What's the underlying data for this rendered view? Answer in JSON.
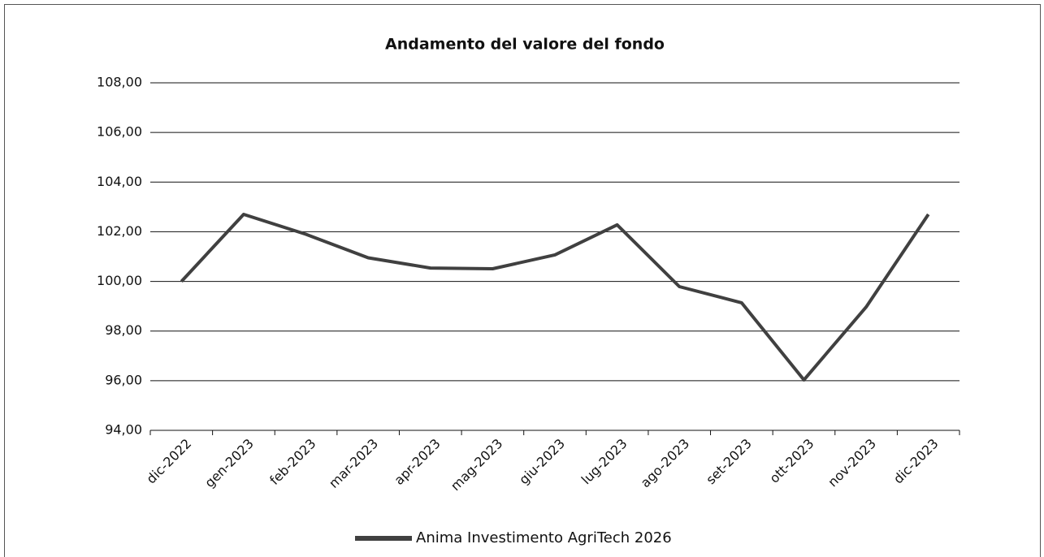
{
  "chart_data": {
    "type": "line",
    "title": "Andamento del valore del fondo",
    "categories": [
      "dic-2022",
      "gen-2023",
      "feb-2023",
      "mar-2023",
      "apr-2023",
      "mag-2023",
      "giu-2023",
      "lug-2023",
      "ago-2023",
      "set-2023",
      "ott-2023",
      "nov-2023",
      "dic-2023"
    ],
    "series": [
      {
        "name": "Anima Investimento AgriTech 2026",
        "color": "#404040",
        "values": [
          100.0,
          102.7,
          101.9,
          100.95,
          100.54,
          100.51,
          101.07,
          102.28,
          99.79,
          99.14,
          96.03,
          98.97,
          102.7
        ]
      }
    ],
    "ylim": [
      94,
      108
    ],
    "yticks": [
      {
        "value": 94,
        "label": "94,00"
      },
      {
        "value": 96,
        "label": "96,00"
      },
      {
        "value": 98,
        "label": "98,00"
      },
      {
        "value": 100,
        "label": "100,00"
      },
      {
        "value": 102,
        "label": "102,00"
      },
      {
        "value": 104,
        "label": "104,00"
      },
      {
        "value": 106,
        "label": "106,00"
      },
      {
        "value": 108,
        "label": "108,00"
      }
    ],
    "grid": true,
    "legend": "bottom"
  }
}
